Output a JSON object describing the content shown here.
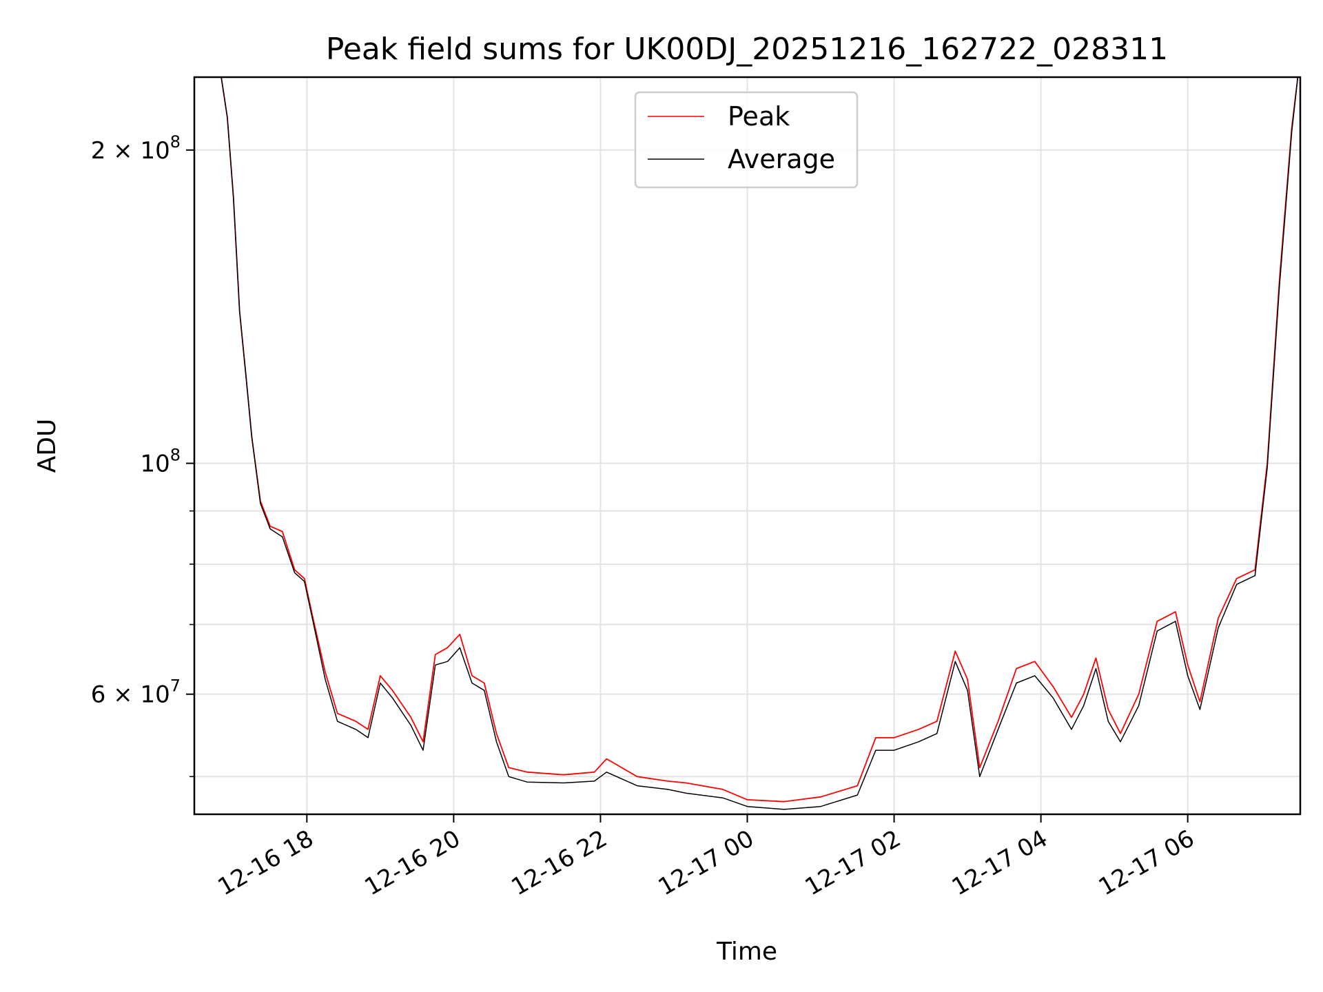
{
  "chart_data": {
    "type": "line",
    "title": "Peak field sums for UK00DJ_20251216_162722_028311",
    "xlabel": "Time",
    "ylabel": "ADU",
    "x_scale": "time",
    "y_scale": "log",
    "xlim": [
      "2025-12-16 16:28",
      "2025-12-17 07:32"
    ],
    "ylim": [
      46000000,
      235000000
    ],
    "grid": true,
    "legend_position": "top-center",
    "x_ticks": [
      {
        "t": "2025-12-16 18:00",
        "label": "12-16 18"
      },
      {
        "t": "2025-12-16 20:00",
        "label": "12-16 20"
      },
      {
        "t": "2025-12-16 22:00",
        "label": "12-16 22"
      },
      {
        "t": "2025-12-17 00:00",
        "label": "12-17 00"
      },
      {
        "t": "2025-12-17 02:00",
        "label": "12-17 02"
      },
      {
        "t": "2025-12-17 04:00",
        "label": "12-17 04"
      },
      {
        "t": "2025-12-17 06:00",
        "label": "12-17 06"
      }
    ],
    "y_major_ticks": [
      {
        "v": 60000000,
        "base": "6 × 10",
        "exp": "7"
      },
      {
        "v": 100000000,
        "base": "10",
        "exp": "8"
      },
      {
        "v": 200000000,
        "base": "2 × 10",
        "exp": "8"
      }
    ],
    "y_minor_ticks": [
      50000000,
      70000000,
      80000000,
      90000000
    ],
    "series": [
      {
        "name": "Peak",
        "color": "#ff0000",
        "points": [
          [
            "2025-12-16 16:50",
            235000000
          ],
          [
            "2025-12-16 16:55",
            215000000
          ],
          [
            "2025-12-16 17:00",
            180000000
          ],
          [
            "2025-12-16 17:05",
            140000000
          ],
          [
            "2025-12-16 17:10",
            122000000
          ],
          [
            "2025-12-16 17:15",
            106000000
          ],
          [
            "2025-12-16 17:22",
            92000000
          ],
          [
            "2025-12-16 17:30",
            87000000
          ],
          [
            "2025-12-16 17:40",
            86000000
          ],
          [
            "2025-12-16 17:50",
            79000000
          ],
          [
            "2025-12-16 17:58",
            77500000
          ],
          [
            "2025-12-16 18:05",
            71000000
          ],
          [
            "2025-12-16 18:15",
            63000000
          ],
          [
            "2025-12-16 18:25",
            57500000
          ],
          [
            "2025-12-16 18:40",
            56500000
          ],
          [
            "2025-12-16 18:50",
            55500000
          ],
          [
            "2025-12-16 19:00",
            62500000
          ],
          [
            "2025-12-16 19:10",
            60500000
          ],
          [
            "2025-12-16 19:25",
            57000000
          ],
          [
            "2025-12-16 19:35",
            54000000
          ],
          [
            "2025-12-16 19:45",
            65500000
          ],
          [
            "2025-12-16 19:55",
            66500000
          ],
          [
            "2025-12-16 20:05",
            68500000
          ],
          [
            "2025-12-16 20:15",
            62500000
          ],
          [
            "2025-12-16 20:25",
            61500000
          ],
          [
            "2025-12-16 20:35",
            55000000
          ],
          [
            "2025-12-16 20:45",
            51000000
          ],
          [
            "2025-12-16 21:00",
            50500000
          ],
          [
            "2025-12-16 21:30",
            50200000
          ],
          [
            "2025-12-16 21:55",
            50500000
          ],
          [
            "2025-12-16 22:05",
            52000000
          ],
          [
            "2025-12-16 22:30",
            50000000
          ],
          [
            "2025-12-16 22:55",
            49500000
          ],
          [
            "2025-12-16 23:10",
            49300000
          ],
          [
            "2025-12-16 23:40",
            48600000
          ],
          [
            "2025-12-17 00:00",
            47500000
          ],
          [
            "2025-12-17 00:30",
            47300000
          ],
          [
            "2025-12-17 01:00",
            47800000
          ],
          [
            "2025-12-17 01:30",
            49000000
          ],
          [
            "2025-12-17 01:45",
            54500000
          ],
          [
            "2025-12-17 02:00",
            54500000
          ],
          [
            "2025-12-17 02:20",
            55500000
          ],
          [
            "2025-12-17 02:35",
            56500000
          ],
          [
            "2025-12-17 02:50",
            66000000
          ],
          [
            "2025-12-17 03:00",
            62000000
          ],
          [
            "2025-12-17 03:10",
            51000000
          ],
          [
            "2025-12-17 03:25",
            56500000
          ],
          [
            "2025-12-17 03:40",
            63500000
          ],
          [
            "2025-12-17 03:55",
            64500000
          ],
          [
            "2025-12-17 04:10",
            61000000
          ],
          [
            "2025-12-17 04:25",
            57000000
          ],
          [
            "2025-12-17 04:35",
            60000000
          ],
          [
            "2025-12-17 04:45",
            65000000
          ],
          [
            "2025-12-17 04:55",
            58000000
          ],
          [
            "2025-12-17 05:05",
            55000000
          ],
          [
            "2025-12-17 05:20",
            60000000
          ],
          [
            "2025-12-17 05:35",
            70500000
          ],
          [
            "2025-12-17 05:50",
            72000000
          ],
          [
            "2025-12-17 06:00",
            64000000
          ],
          [
            "2025-12-17 06:10",
            59000000
          ],
          [
            "2025-12-17 06:25",
            71000000
          ],
          [
            "2025-12-17 06:40",
            77500000
          ],
          [
            "2025-12-17 06:55",
            79000000
          ],
          [
            "2025-12-17 07:05",
            100000000
          ],
          [
            "2025-12-17 07:15",
            150000000
          ],
          [
            "2025-12-17 07:25",
            210000000
          ],
          [
            "2025-12-17 07:30",
            235000000
          ]
        ]
      },
      {
        "name": "Average",
        "color": "#000000",
        "points": [
          [
            "2025-12-16 16:50",
            235000000
          ],
          [
            "2025-12-16 16:55",
            215000000
          ],
          [
            "2025-12-16 17:00",
            180000000
          ],
          [
            "2025-12-16 17:05",
            140000000
          ],
          [
            "2025-12-16 17:10",
            122000000
          ],
          [
            "2025-12-16 17:15",
            106000000
          ],
          [
            "2025-12-16 17:22",
            91500000
          ],
          [
            "2025-12-16 17:30",
            86500000
          ],
          [
            "2025-12-16 17:40",
            85000000
          ],
          [
            "2025-12-16 17:50",
            78500000
          ],
          [
            "2025-12-16 17:58",
            77000000
          ],
          [
            "2025-12-16 18:05",
            70500000
          ],
          [
            "2025-12-16 18:15",
            62000000
          ],
          [
            "2025-12-16 18:25",
            56500000
          ],
          [
            "2025-12-16 18:40",
            55500000
          ],
          [
            "2025-12-16 18:50",
            54500000
          ],
          [
            "2025-12-16 19:00",
            61500000
          ],
          [
            "2025-12-16 19:10",
            59500000
          ],
          [
            "2025-12-16 19:25",
            56000000
          ],
          [
            "2025-12-16 19:35",
            53000000
          ],
          [
            "2025-12-16 19:45",
            64000000
          ],
          [
            "2025-12-16 19:55",
            64500000
          ],
          [
            "2025-12-16 20:05",
            66500000
          ],
          [
            "2025-12-16 20:15",
            61500000
          ],
          [
            "2025-12-16 20:25",
            60500000
          ],
          [
            "2025-12-16 20:35",
            54000000
          ],
          [
            "2025-12-16 20:45",
            50000000
          ],
          [
            "2025-12-16 21:00",
            49400000
          ],
          [
            "2025-12-16 21:30",
            49300000
          ],
          [
            "2025-12-16 21:55",
            49500000
          ],
          [
            "2025-12-16 22:05",
            50500000
          ],
          [
            "2025-12-16 22:30",
            49000000
          ],
          [
            "2025-12-16 22:55",
            48600000
          ],
          [
            "2025-12-16 23:10",
            48200000
          ],
          [
            "2025-12-16 23:40",
            47700000
          ],
          [
            "2025-12-17 00:00",
            46800000
          ],
          [
            "2025-12-17 00:30",
            46500000
          ],
          [
            "2025-12-17 01:00",
            46800000
          ],
          [
            "2025-12-17 01:30",
            48000000
          ],
          [
            "2025-12-17 01:45",
            53000000
          ],
          [
            "2025-12-17 02:00",
            53000000
          ],
          [
            "2025-12-17 02:20",
            54000000
          ],
          [
            "2025-12-17 02:35",
            55000000
          ],
          [
            "2025-12-17 02:50",
            64500000
          ],
          [
            "2025-12-17 03:00",
            60500000
          ],
          [
            "2025-12-17 03:10",
            50000000
          ],
          [
            "2025-12-17 03:25",
            55500000
          ],
          [
            "2025-12-17 03:40",
            61500000
          ],
          [
            "2025-12-17 03:55",
            62500000
          ],
          [
            "2025-12-17 04:10",
            59500000
          ],
          [
            "2025-12-17 04:25",
            55500000
          ],
          [
            "2025-12-17 04:35",
            58500000
          ],
          [
            "2025-12-17 04:45",
            63500000
          ],
          [
            "2025-12-17 04:55",
            56500000
          ],
          [
            "2025-12-17 05:05",
            54000000
          ],
          [
            "2025-12-17 05:20",
            58500000
          ],
          [
            "2025-12-17 05:35",
            69000000
          ],
          [
            "2025-12-17 05:50",
            70500000
          ],
          [
            "2025-12-17 06:00",
            62500000
          ],
          [
            "2025-12-17 06:10",
            58000000
          ],
          [
            "2025-12-17 06:25",
            69500000
          ],
          [
            "2025-12-17 06:40",
            76500000
          ],
          [
            "2025-12-17 06:55",
            78000000
          ],
          [
            "2025-12-17 07:05",
            99000000
          ],
          [
            "2025-12-17 07:15",
            148000000
          ],
          [
            "2025-12-17 07:25",
            208000000
          ],
          [
            "2025-12-17 07:30",
            235000000
          ]
        ]
      }
    ]
  }
}
